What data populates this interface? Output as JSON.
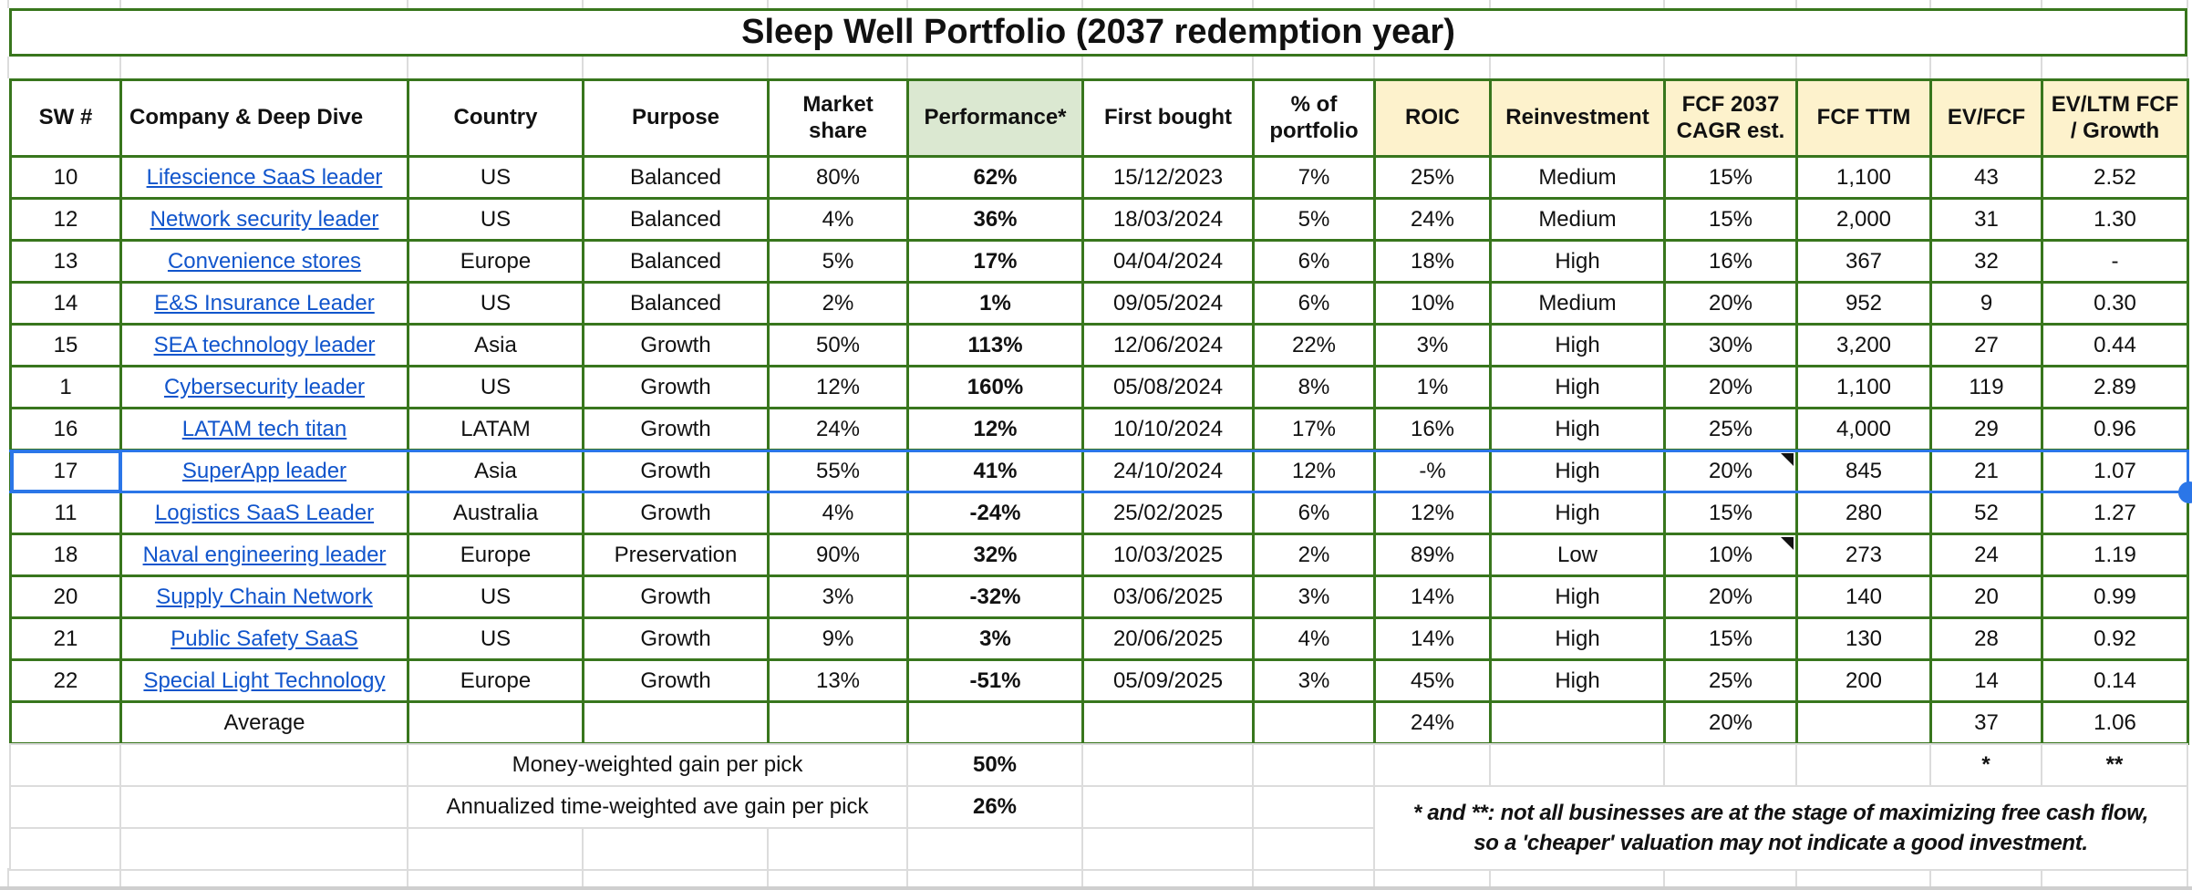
{
  "title": "Sleep Well Portfolio (2037 redemption year)",
  "columns": {
    "sw": "SW #",
    "company": "Company & Deep Dive",
    "country": "Country",
    "purpose": "Purpose",
    "market_share": "Market share",
    "performance": "Performance*",
    "first_bought": "First bought",
    "pct_portfolio": "% of portfolio",
    "roic": "ROIC",
    "reinvestment": "Reinvestment",
    "fcf_cagr": "FCF 2037 CAGR est.",
    "fcf_ttm": "FCF TTM",
    "ev_fcf": "EV/FCF",
    "ev_ltm_growth": "EV/LTM FCF / Growth"
  },
  "table": {
    "rows": [
      {
        "sw": "10",
        "company": "Lifescience SaaS leader",
        "country": "US",
        "purpose": "Balanced",
        "market_share": "80%",
        "performance": "62%",
        "first_bought": "15/12/2023",
        "pct_portfolio": "7%",
        "roic": "25%",
        "reinvestment": "Medium",
        "fcf_cagr": "15%",
        "fcf_ttm": "1,100",
        "ev_fcf": "43",
        "ev_ltm_growth": "2.52"
      },
      {
        "sw": "12",
        "company": "Network security leader",
        "country": "US",
        "purpose": "Balanced",
        "market_share": "4%",
        "performance": "36%",
        "first_bought": "18/03/2024",
        "pct_portfolio": "5%",
        "roic": "24%",
        "reinvestment": "Medium",
        "fcf_cagr": "15%",
        "fcf_ttm": "2,000",
        "ev_fcf": "31",
        "ev_ltm_growth": "1.30"
      },
      {
        "sw": "13",
        "company": "Convenience stores",
        "country": "Europe",
        "purpose": "Balanced",
        "market_share": "5%",
        "performance": "17%",
        "first_bought": "04/04/2024",
        "pct_portfolio": "6%",
        "roic": "18%",
        "reinvestment": "High",
        "fcf_cagr": "16%",
        "fcf_ttm": "367",
        "ev_fcf": "32",
        "ev_ltm_growth": "-"
      },
      {
        "sw": "14",
        "company": "E&S Insurance Leader",
        "country": "US",
        "purpose": "Balanced",
        "market_share": "2%",
        "performance": "1%",
        "first_bought": "09/05/2024",
        "pct_portfolio": "6%",
        "roic": "10%",
        "reinvestment": "Medium",
        "fcf_cagr": "20%",
        "fcf_ttm": "952",
        "ev_fcf": "9",
        "ev_ltm_growth": "0.30"
      },
      {
        "sw": "15",
        "company": "SEA technology leader",
        "country": "Asia",
        "purpose": "Growth",
        "market_share": "50%",
        "performance": "113%",
        "first_bought": "12/06/2024",
        "pct_portfolio": "22%",
        "roic": "3%",
        "reinvestment": "High",
        "fcf_cagr": "30%",
        "fcf_ttm": "3,200",
        "ev_fcf": "27",
        "ev_ltm_growth": "0.44"
      },
      {
        "sw": "1",
        "company": "Cybersecurity leader",
        "country": "US",
        "purpose": "Growth",
        "market_share": "12%",
        "performance": "160%",
        "first_bought": "05/08/2024",
        "pct_portfolio": "8%",
        "roic": "1%",
        "reinvestment": "High",
        "fcf_cagr": "20%",
        "fcf_ttm": "1,100",
        "ev_fcf": "119",
        "ev_ltm_growth": "2.89"
      },
      {
        "sw": "16",
        "company": "LATAM tech titan",
        "country": "LATAM",
        "purpose": "Growth",
        "market_share": "24%",
        "performance": "12%",
        "first_bought": "10/10/2024",
        "pct_portfolio": "17%",
        "roic": "16%",
        "reinvestment": "High",
        "fcf_cagr": "25%",
        "fcf_ttm": "4,000",
        "ev_fcf": "29",
        "ev_ltm_growth": "0.96"
      },
      {
        "sw": "17",
        "company": "SuperApp leader",
        "country": "Asia",
        "purpose": "Growth",
        "market_share": "55%",
        "performance": "41%",
        "first_bought": "24/10/2024",
        "pct_portfolio": "12%",
        "roic": "-%",
        "reinvestment": "High",
        "fcf_cagr": "20%",
        "fcf_ttm": "845",
        "ev_fcf": "21",
        "ev_ltm_growth": "1.07",
        "selected": true,
        "fcf_cagr_note": true
      },
      {
        "sw": "11",
        "company": "Logistics SaaS Leader",
        "country": "Australia",
        "purpose": "Growth",
        "market_share": "4%",
        "performance": "-24%",
        "first_bought": "25/02/2025",
        "pct_portfolio": "6%",
        "roic": "12%",
        "reinvestment": "High",
        "fcf_cagr": "15%",
        "fcf_ttm": "280",
        "ev_fcf": "52",
        "ev_ltm_growth": "1.27"
      },
      {
        "sw": "18",
        "company": "Naval engineering leader",
        "country": "Europe",
        "purpose": "Preservation",
        "market_share": "90%",
        "performance": "32%",
        "first_bought": "10/03/2025",
        "pct_portfolio": "2%",
        "roic": "89%",
        "reinvestment": "Low",
        "fcf_cagr": "10%",
        "fcf_ttm": "273",
        "ev_fcf": "24",
        "ev_ltm_growth": "1.19",
        "fcf_cagr_note": true
      },
      {
        "sw": "20",
        "company": "Supply Chain Network",
        "country": "US",
        "purpose": "Growth",
        "market_share": "3%",
        "performance": "-32%",
        "first_bought": "03/06/2025",
        "pct_portfolio": "3%",
        "roic": "14%",
        "reinvestment": "High",
        "fcf_cagr": "20%",
        "fcf_ttm": "140",
        "ev_fcf": "20",
        "ev_ltm_growth": "0.99"
      },
      {
        "sw": "21",
        "company": "Public Safety SaaS",
        "country": "US",
        "purpose": "Growth",
        "market_share": "9%",
        "performance": "3%",
        "first_bought": "20/06/2025",
        "pct_portfolio": "4%",
        "roic": "14%",
        "reinvestment": "High",
        "fcf_cagr": "15%",
        "fcf_ttm": "130",
        "ev_fcf": "28",
        "ev_ltm_growth": "0.92"
      },
      {
        "sw": "22",
        "company": "Special Light Technology",
        "country": "Europe",
        "purpose": "Growth",
        "market_share": "13%",
        "performance": "-51%",
        "first_bought": "05/09/2025",
        "pct_portfolio": "3%",
        "roic": "45%",
        "reinvestment": "High",
        "fcf_cagr": "25%",
        "fcf_ttm": "200",
        "ev_fcf": "14",
        "ev_ltm_growth": "0.14",
        "fcf_cagr_large": true
      },
      {
        "sw": "",
        "company": "Average",
        "country": "",
        "purpose": "",
        "market_share": "",
        "performance": "",
        "first_bought": "",
        "pct_portfolio": "",
        "roic": "24%",
        "reinvestment": "",
        "fcf_cagr": "20%",
        "fcf_ttm": "",
        "ev_fcf": "37",
        "ev_ltm_growth": "1.06",
        "is_average": true
      }
    ]
  },
  "footer": {
    "money_weighted_label": "Money-weighted gain per pick",
    "money_weighted_value": "50%",
    "annualized_label": "Annualized time-weighted ave gain per pick",
    "annualized_value": "26%",
    "ev_fcf_marker": "*",
    "ev_ltm_marker": "**"
  },
  "footnote": {
    "line1": "* and **: not all businesses are at the stage of maximizing free cash flow,",
    "line2": "so a 'cheaper' valuation may not indicate a good investment."
  },
  "colors": {
    "border_green": "#38761d",
    "fill_yellow": "#fdf2cc",
    "fill_green": "#dbe8d1",
    "link_blue": "#1155cc",
    "value_blue": "#1155cc",
    "perf_blue": "#1f6fe0",
    "selection_blue": "#2b76e8",
    "tint_white": "#e9effb",
    "tint_yellow": "#dcd7c8",
    "tint_green": "#ccd9cc",
    "gridline": "#dcdcdc",
    "strip_gray": "#cfcfcf"
  }
}
